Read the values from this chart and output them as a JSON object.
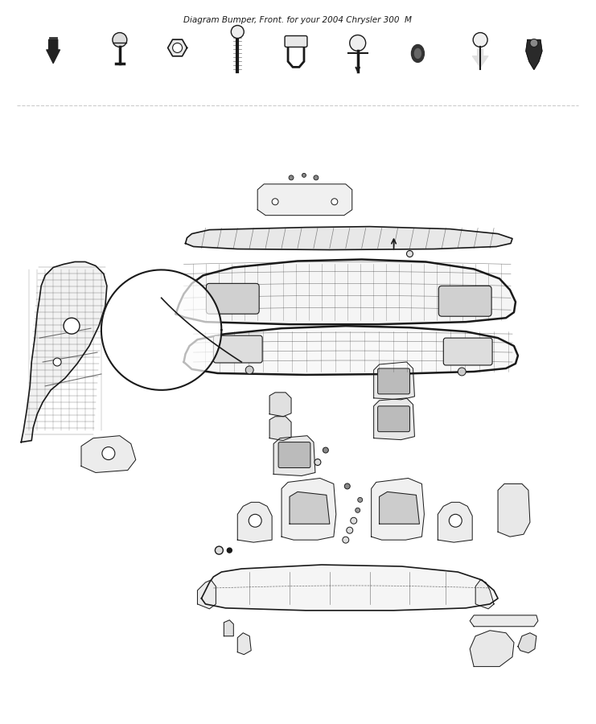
{
  "title": "Diagram Bumper, Front. for your 2004 Chrysler 300  M",
  "bg_color": "#ffffff",
  "line_color": "#1a1a1a",
  "fig_width": 7.41,
  "fig_height": 9.0,
  "dpi": 100
}
